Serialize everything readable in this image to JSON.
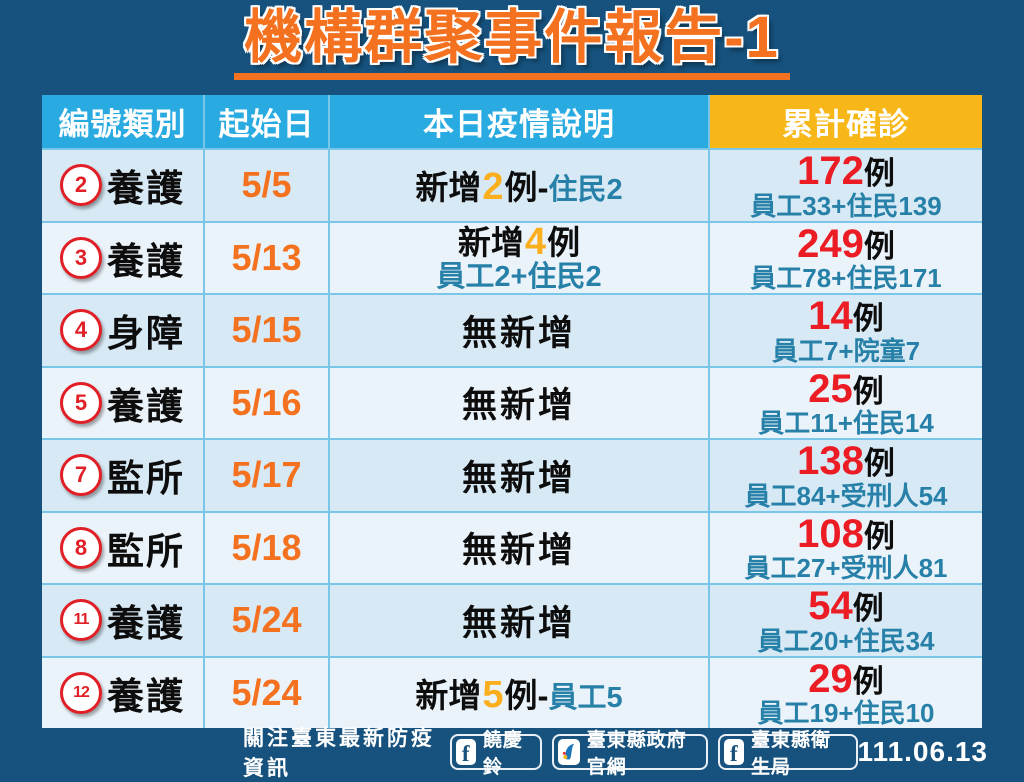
{
  "title": "機構群聚事件報告-1",
  "colors": {
    "background_navy": "#16527D",
    "header_cyan": "#29ABE2",
    "header_yellow": "#F7B718",
    "title_orange": "#F4711F",
    "date_orange": "#F4711F",
    "new_count_gold": "#FBAF1E",
    "cumulative_red": "#EC1C24",
    "detail_teal": "#2780A8",
    "row_light_blue": "#D7E9F5",
    "row_lighter": "#EBF3FA",
    "badge_red": "#E01F26"
  },
  "table": {
    "headers": [
      "編號類別",
      "起始日",
      "本日疫情說明",
      "累計確診"
    ],
    "rows": [
      {
        "id": "2",
        "category": "養護",
        "start_date": "5/5",
        "status": {
          "type": "new",
          "prefix": "新增",
          "count": "2",
          "unit": "例",
          "separator": "-",
          "detail": "住民2",
          "layout": "inline"
        },
        "cumulative": {
          "count": "172",
          "unit": "例",
          "detail": "員工33+住民139"
        }
      },
      {
        "id": "3",
        "category": "養護",
        "start_date": "5/13",
        "status": {
          "type": "new",
          "prefix": "新增",
          "count": "4",
          "unit": "例",
          "separator": "",
          "detail": "員工2+住民2",
          "layout": "stacked"
        },
        "cumulative": {
          "count": "249",
          "unit": "例",
          "detail": "員工78+住民171"
        }
      },
      {
        "id": "4",
        "category": "身障",
        "start_date": "5/15",
        "status": {
          "type": "none",
          "label": "無新增"
        },
        "cumulative": {
          "count": "14",
          "unit": "例",
          "detail": "員工7+院童7"
        }
      },
      {
        "id": "5",
        "category": "養護",
        "start_date": "5/16",
        "status": {
          "type": "none",
          "label": "無新增"
        },
        "cumulative": {
          "count": "25",
          "unit": "例",
          "detail": "員工11+住民14"
        }
      },
      {
        "id": "7",
        "category": "監所",
        "start_date": "5/17",
        "status": {
          "type": "none",
          "label": "無新增"
        },
        "cumulative": {
          "count": "138",
          "unit": "例",
          "detail": "員工84+受刑人54"
        }
      },
      {
        "id": "8",
        "category": "監所",
        "start_date": "5/18",
        "status": {
          "type": "none",
          "label": "無新增"
        },
        "cumulative": {
          "count": "108",
          "unit": "例",
          "detail": "員工27+受刑人81"
        }
      },
      {
        "id": "11",
        "category": "養護",
        "start_date": "5/24",
        "status": {
          "type": "none",
          "label": "無新增"
        },
        "cumulative": {
          "count": "54",
          "unit": "例",
          "detail": "員工20+住民34"
        }
      },
      {
        "id": "12",
        "category": "養護",
        "start_date": "5/24",
        "status": {
          "type": "new",
          "prefix": "新增",
          "count": "5",
          "unit": "例",
          "separator": "-",
          "detail": "員工5",
          "layout": "inline"
        },
        "cumulative": {
          "count": "29",
          "unit": "例",
          "detail": "員工19+住民10"
        }
      }
    ]
  },
  "footer": {
    "prompt": "關注臺東最新防疫資訊",
    "links": [
      {
        "icon": "facebook-icon",
        "label": "饒慶鈴"
      },
      {
        "icon": "taitung-county-logo",
        "label": "臺東縣政府官網"
      },
      {
        "icon": "facebook-icon",
        "label": "臺東縣衛生局"
      }
    ],
    "date": "111.06.13"
  }
}
